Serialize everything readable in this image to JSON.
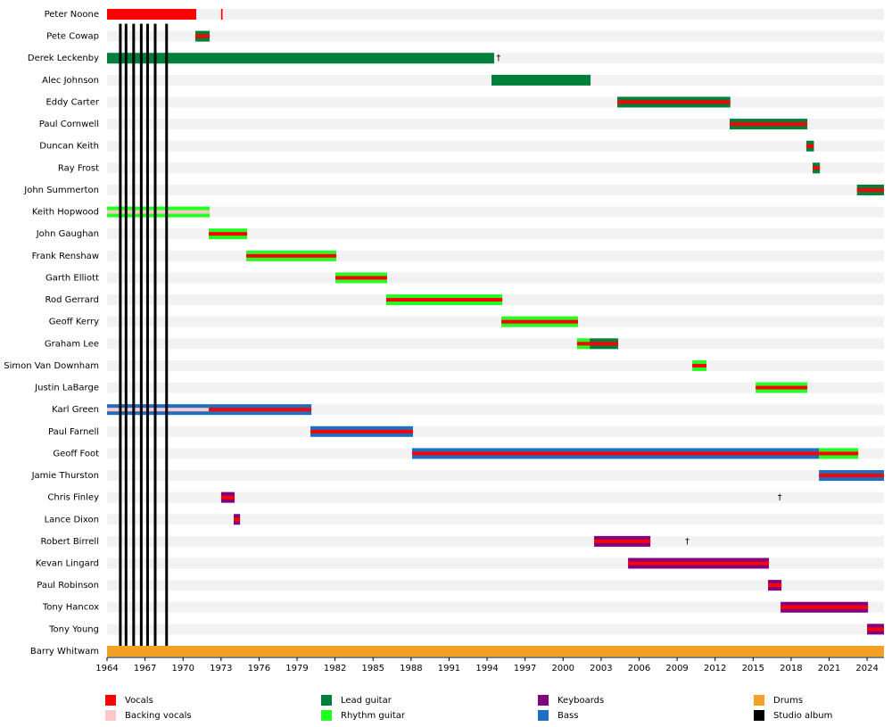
{
  "chart_data": {
    "type": "timeline",
    "xlim": [
      1964,
      2025.33
    ],
    "xticks": [
      1964,
      1967,
      1970,
      1973,
      1976,
      1979,
      1982,
      1985,
      1988,
      1991,
      1994,
      1997,
      2000,
      2003,
      2006,
      2009,
      2012,
      2015,
      2018,
      2021,
      2024
    ],
    "death_mark": "†",
    "roles": [
      {
        "name": "Vocals",
        "color": "#ff0000"
      },
      {
        "name": "Backing vocals",
        "color": "#ffc8c8"
      },
      {
        "name": "Lead guitar",
        "color": "#007f3a"
      },
      {
        "name": "Rhythm guitar",
        "color": "#22ff22"
      },
      {
        "name": "Keyboards",
        "color": "#800080"
      },
      {
        "name": "Bass",
        "color": "#1e6fc0"
      },
      {
        "name": "Drums",
        "color": "#f4a024"
      },
      {
        "name": "Studio album",
        "color": "#000000"
      }
    ],
    "albums": [
      1965.05,
      1965.5,
      1966.1,
      1966.7,
      1967.2,
      1967.8,
      1968.7
    ],
    "members": [
      {
        "name": "Peter Noone",
        "stints": [
          {
            "start": 1964,
            "end": 1971.04,
            "roles": [
              "Vocals"
            ]
          },
          {
            "start": 1973.0,
            "end": 1973.12,
            "roles": [
              "Vocals"
            ]
          }
        ]
      },
      {
        "name": "Pete Cowap",
        "stints": [
          {
            "start": 1970.97,
            "end": 1972.1,
            "roles": [
              "Lead guitar",
              "Vocals"
            ]
          }
        ]
      },
      {
        "name": "Derek Leckenby",
        "stints": [
          {
            "start": 1964,
            "end": 1994.56,
            "roles": [
              "Lead guitar"
            ]
          }
        ],
        "died": 1994.9
      },
      {
        "name": "Alec Johnson",
        "stints": [
          {
            "start": 1994.35,
            "end": 2002.17,
            "roles": [
              "Lead guitar"
            ]
          }
        ]
      },
      {
        "name": "Eddy Carter",
        "stints": [
          {
            "start": 2004.28,
            "end": 2013.2,
            "roles": [
              "Lead guitar",
              "Vocals"
            ]
          }
        ]
      },
      {
        "name": "Paul Cornwell",
        "stints": [
          {
            "start": 2013.15,
            "end": 2019.28,
            "roles": [
              "Lead guitar",
              "Vocals"
            ]
          }
        ]
      },
      {
        "name": "Duncan Keith",
        "stints": [
          {
            "start": 2019.2,
            "end": 2019.8,
            "roles": [
              "Lead guitar",
              "Vocals"
            ]
          }
        ]
      },
      {
        "name": "Ray Frost",
        "stints": [
          {
            "start": 2019.7,
            "end": 2020.27,
            "roles": [
              "Lead guitar",
              "Vocals"
            ]
          }
        ]
      },
      {
        "name": "John Summerton",
        "stints": [
          {
            "start": 2023.2,
            "end": 2025.33,
            "roles": [
              "Lead guitar",
              "Vocals"
            ]
          }
        ]
      },
      {
        "name": "Keith Hopwood",
        "stints": [
          {
            "start": 1964,
            "end": 1972.1,
            "roles": [
              "Rhythm guitar",
              "Backing vocals"
            ]
          }
        ]
      },
      {
        "name": "John Gaughan",
        "stints": [
          {
            "start": 1972.03,
            "end": 1975.06,
            "roles": [
              "Rhythm guitar",
              "Vocals"
            ]
          }
        ]
      },
      {
        "name": "Frank Renshaw",
        "stints": [
          {
            "start": 1974.99,
            "end": 1982.1,
            "roles": [
              "Rhythm guitar",
              "Vocals"
            ]
          }
        ]
      },
      {
        "name": "Garth Elliott",
        "stints": [
          {
            "start": 1982.03,
            "end": 1986.11,
            "roles": [
              "Rhythm guitar",
              "Vocals"
            ]
          }
        ]
      },
      {
        "name": "Rod Gerrard",
        "stints": [
          {
            "start": 1986.04,
            "end": 1995.2,
            "roles": [
              "Rhythm guitar",
              "Vocals"
            ]
          }
        ]
      },
      {
        "name": "Geoff Kerry",
        "stints": [
          {
            "start": 1995.13,
            "end": 2001.18,
            "roles": [
              "Rhythm guitar",
              "Vocals"
            ]
          }
        ]
      },
      {
        "name": "Graham Lee",
        "stints": [
          {
            "start": 2001.1,
            "end": 2002.1,
            "roles": [
              "Rhythm guitar",
              "Vocals"
            ]
          },
          {
            "start": 2002.1,
            "end": 2004.35,
            "roles": [
              "Lead guitar",
              "Vocals"
            ]
          }
        ]
      },
      {
        "name": "Simon Van Downham",
        "stints": [
          {
            "start": 2010.2,
            "end": 2011.32,
            "roles": [
              "Rhythm guitar",
              "Vocals"
            ]
          }
        ]
      },
      {
        "name": "Justin LaBarge",
        "stints": [
          {
            "start": 2015.2,
            "end": 2019.28,
            "roles": [
              "Rhythm guitar",
              "Vocals"
            ]
          }
        ]
      },
      {
        "name": "Karl Green",
        "stints": [
          {
            "start": 1964,
            "end": 1972.03,
            "roles": [
              "Bass",
              "Backing vocals"
            ]
          },
          {
            "start": 1972.03,
            "end": 1980.13,
            "roles": [
              "Bass",
              "Vocals"
            ]
          }
        ]
      },
      {
        "name": "Paul Farnell",
        "stints": [
          {
            "start": 1980.06,
            "end": 1988.15,
            "roles": [
              "Bass",
              "Vocals"
            ]
          }
        ]
      },
      {
        "name": "Geoff Foot",
        "stints": [
          {
            "start": 1988.08,
            "end": 2020.2,
            "roles": [
              "Bass",
              "Vocals"
            ]
          },
          {
            "start": 2020.2,
            "end": 2023.3,
            "roles": [
              "Rhythm guitar",
              "Vocals"
            ]
          }
        ]
      },
      {
        "name": "Jamie Thurston",
        "stints": [
          {
            "start": 2020.2,
            "end": 2025.33,
            "roles": [
              "Bass",
              "Vocals"
            ]
          }
        ]
      },
      {
        "name": "Chris Finley",
        "stints": [
          {
            "start": 1973.01,
            "end": 1974.07,
            "roles": [
              "Keyboards",
              "Vocals"
            ]
          }
        ],
        "died": 2017.1
      },
      {
        "name": "Lance Dixon",
        "stints": [
          {
            "start": 1974.0,
            "end": 1974.5,
            "roles": [
              "Keyboards",
              "Vocals"
            ]
          }
        ]
      },
      {
        "name": "Robert Birrell",
        "stints": [
          {
            "start": 2002.45,
            "end": 2006.89,
            "roles": [
              "Keyboards",
              "Vocals"
            ]
          }
        ],
        "died": 2009.8
      },
      {
        "name": "Kevan Lingard",
        "stints": [
          {
            "start": 2005.13,
            "end": 2016.25,
            "roles": [
              "Keyboards",
              "Vocals"
            ]
          }
        ]
      },
      {
        "name": "Paul Robinson",
        "stints": [
          {
            "start": 2016.18,
            "end": 2017.24,
            "roles": [
              "Keyboards",
              "Vocals"
            ]
          }
        ]
      },
      {
        "name": "Tony Hancox",
        "stints": [
          {
            "start": 2017.17,
            "end": 2024.07,
            "roles": [
              "Keyboards",
              "Vocals"
            ]
          }
        ]
      },
      {
        "name": "Tony Young",
        "stints": [
          {
            "start": 2024.0,
            "end": 2025.33,
            "roles": [
              "Keyboards",
              "Vocals"
            ]
          }
        ]
      },
      {
        "name": "Barry Whitwam",
        "stints": [
          {
            "start": 1964,
            "end": 2025.33,
            "roles": [
              "Drums"
            ]
          }
        ]
      }
    ]
  }
}
